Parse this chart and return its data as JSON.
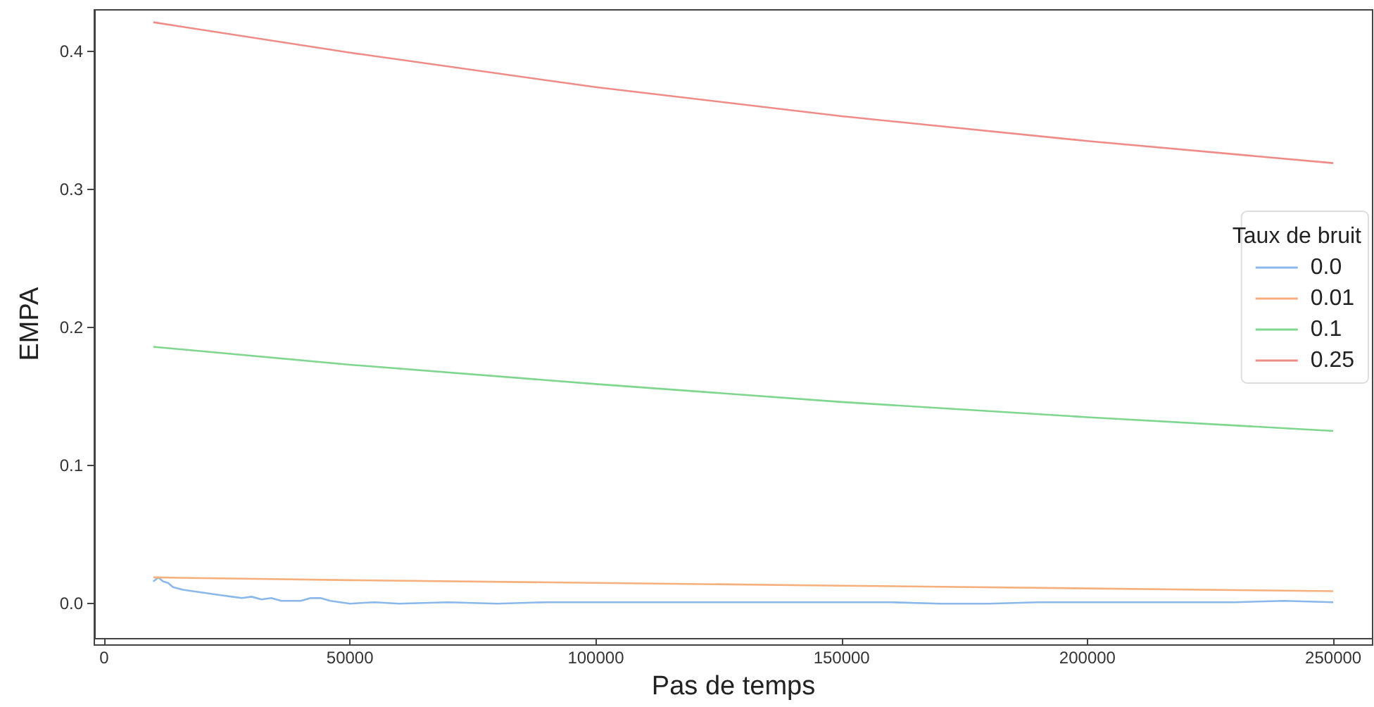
{
  "chart_data": {
    "type": "line",
    "xlabel": "Pas de temps",
    "ylabel": "EMPA",
    "legend_title": "Taux de bruit",
    "legend": "right",
    "xlim": [
      -2000,
      258000
    ],
    "xticks": [
      0,
      50000,
      100000,
      150000,
      200000,
      250000
    ],
    "ylim": [
      -0.025,
      0.43
    ],
    "yticks": [
      {
        "value": 0,
        "label": "0.0"
      },
      0.1,
      0.2,
      0.3,
      0.4
    ],
    "grid": false,
    "marker": "none",
    "line_style": "solid",
    "series": [
      {
        "name": "0.0",
        "color": "#8bb8ea",
        "x": [
          10000,
          11000,
          12000,
          13000,
          14000,
          16000,
          18000,
          20000,
          22000,
          24000,
          26000,
          28000,
          30000,
          32000,
          34000,
          36000,
          38000,
          40000,
          42000,
          44000,
          46000,
          48000,
          50000,
          55000,
          60000,
          70000,
          80000,
          90000,
          100000,
          110000,
          120000,
          130000,
          140000,
          150000,
          160000,
          170000,
          180000,
          190000,
          200000,
          210000,
          220000,
          230000,
          240000,
          250000
        ],
        "values": [
          0.016,
          0.019,
          0.016,
          0.015,
          0.012,
          0.01,
          0.009,
          0.008,
          0.007,
          0.006,
          0.005,
          0.004,
          0.005,
          0.003,
          0.004,
          0.002,
          0.002,
          0.002,
          0.004,
          0.004,
          0.002,
          0.001,
          0.0,
          0.001,
          0.0,
          0.001,
          0.0,
          0.001,
          0.001,
          0.001,
          0.001,
          0.001,
          0.001,
          0.001,
          0.001,
          0.0,
          0.0,
          0.001,
          0.001,
          0.001,
          0.001,
          0.001,
          0.002,
          0.001
        ]
      },
      {
        "name": "0.01",
        "color": "#f5b07d",
        "x": [
          10000,
          50000,
          100000,
          150000,
          200000,
          250000
        ],
        "values": [
          0.019,
          0.017,
          0.015,
          0.013,
          0.011,
          0.009
        ]
      },
      {
        "name": "0.1",
        "color": "#7fd68e",
        "x": [
          10000,
          50000,
          100000,
          150000,
          200000,
          250000
        ],
        "values": [
          0.186,
          0.173,
          0.159,
          0.146,
          0.135,
          0.125
        ]
      },
      {
        "name": "0.25",
        "color": "#f08c88",
        "x": [
          10000,
          50000,
          100000,
          150000,
          200000,
          250000
        ],
        "values": [
          0.421,
          0.399,
          0.374,
          0.353,
          0.335,
          0.319
        ]
      }
    ]
  }
}
